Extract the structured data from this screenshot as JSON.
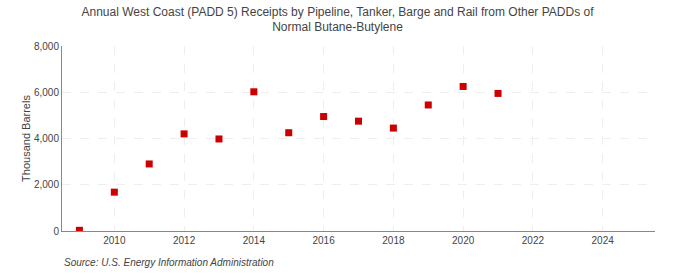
{
  "chart_data": {
    "type": "scatter",
    "title": "Annual West Coast (PADD 5) Receipts by Pipeline, Tanker, Barge and Rail from Other PADDs of\nNormal Butane-Butylene",
    "ylabel": "Thousand Barrels",
    "annotations": [
      "Source: U.S. Energy Information Administration"
    ],
    "x": [
      2009,
      2010,
      2011,
      2012,
      2013,
      2014,
      2015,
      2016,
      2017,
      2018,
      2019,
      2020,
      2021
    ],
    "values": [
      30,
      1680,
      2900,
      4200,
      3980,
      6020,
      4250,
      4950,
      4750,
      4450,
      5450,
      6250,
      5950
    ],
    "color": "#cc0000",
    "marker": "square",
    "xlim": [
      2008.5,
      2025.5
    ],
    "xticks": [
      2010,
      2012,
      2014,
      2016,
      2018,
      2020,
      2022,
      2024
    ],
    "ylim": [
      0,
      8000
    ],
    "yticks": [
      0,
      {
        "value": 2000,
        "label": "2,000"
      },
      {
        "value": 4000,
        "label": "4,000"
      },
      {
        "value": 6000,
        "label": "6,000"
      },
      {
        "value": 8000,
        "label": "8,000"
      }
    ],
    "grid": true
  }
}
